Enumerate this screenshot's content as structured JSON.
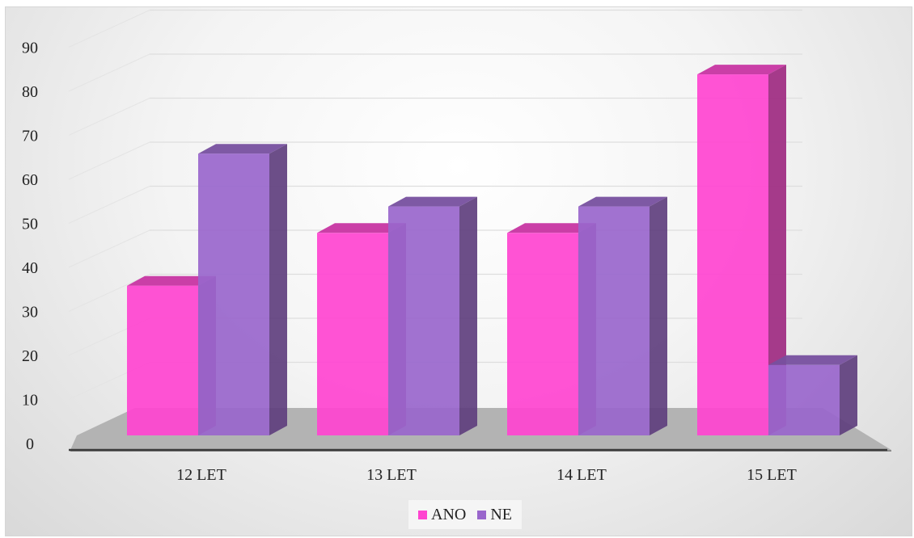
{
  "chart_data": {
    "type": "bar",
    "categories": [
      "12 LET",
      "13 LET",
      "14 LET",
      "15 LET"
    ],
    "series": [
      {
        "name": "ANO",
        "values": [
          34,
          46,
          46,
          82
        ],
        "color": "#ff44d0"
      },
      {
        "name": "NE",
        "values": [
          64,
          52,
          52,
          16
        ],
        "color": "#9966cc"
      }
    ],
    "y_ticks": [
      0,
      10,
      20,
      30,
      40,
      50,
      60,
      70,
      80,
      90
    ],
    "ylim": [
      0,
      90
    ],
    "grid": true,
    "legend_position": "bottom",
    "style": "3d-clustered-column",
    "floor_color": "#b3b3b3"
  }
}
